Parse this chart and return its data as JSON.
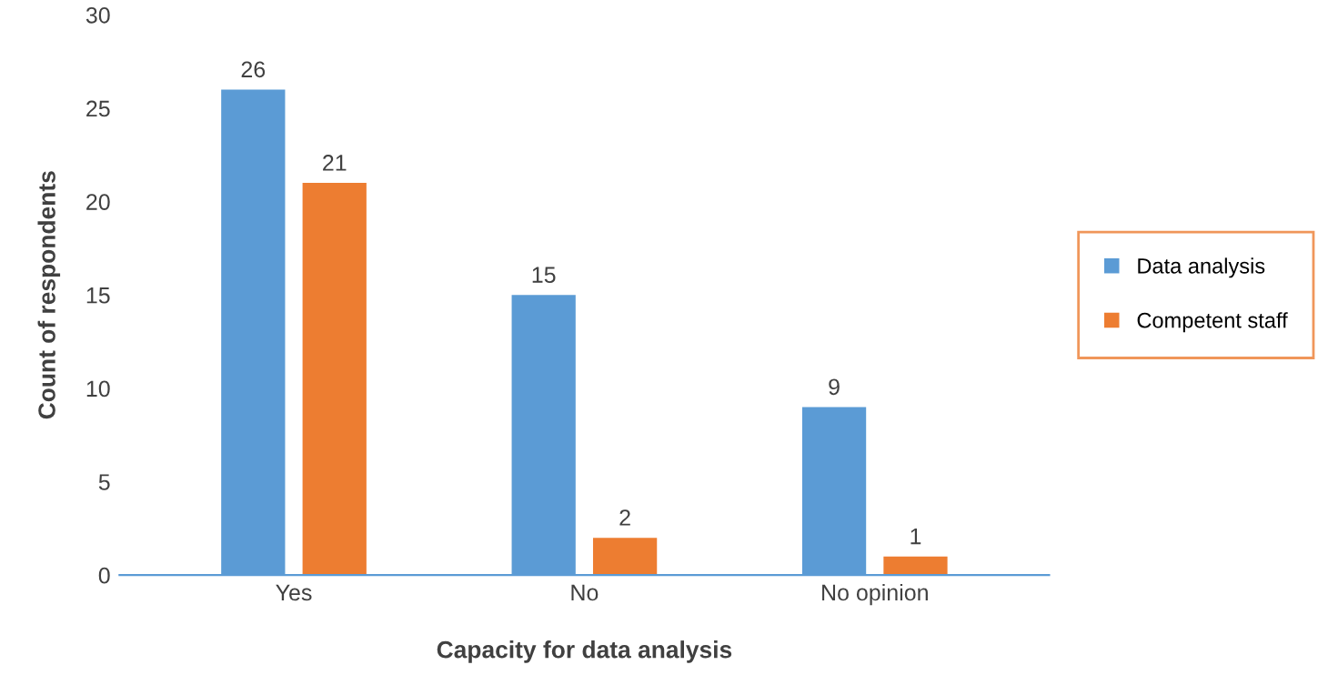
{
  "chart_data": {
    "type": "bar",
    "xlabel": "Capacity for data analysis",
    "ylabel": "Count of respondents",
    "categories": [
      "Yes",
      "No",
      "No opinion"
    ],
    "series": [
      {
        "name": "Data analysis",
        "color": "#5b9bd5",
        "values": [
          26,
          15,
          9
        ]
      },
      {
        "name": "Competent staff",
        "color": "#ed7d31",
        "values": [
          21,
          2,
          1
        ]
      }
    ],
    "ylim": [
      0,
      30
    ],
    "yticks": [
      0,
      5,
      10,
      15,
      20,
      25,
      30
    ],
    "data_labels": true,
    "grid": false,
    "legend": "right"
  }
}
